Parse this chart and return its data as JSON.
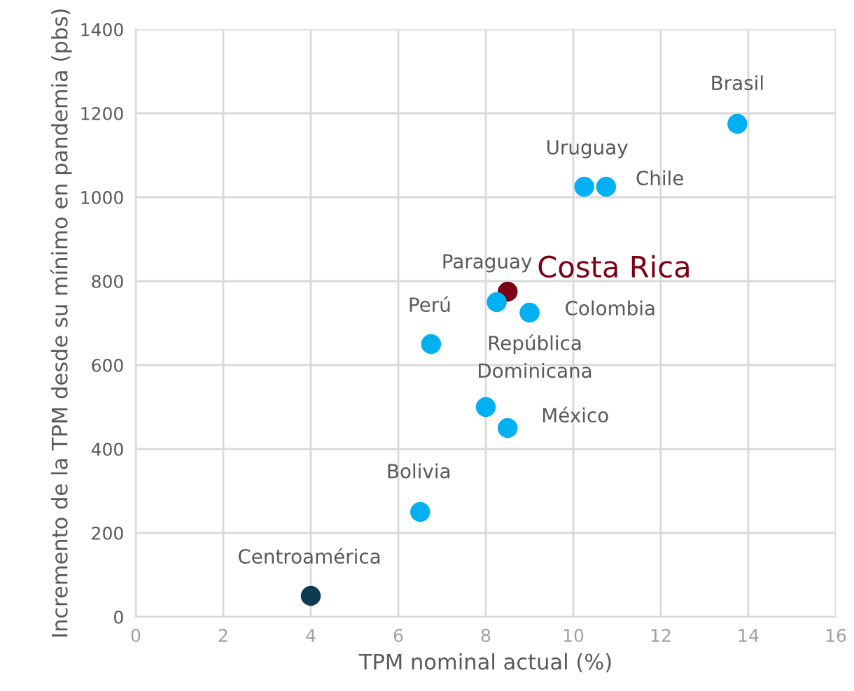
{
  "chart_data": {
    "type": "scatter",
    "xlabel": "TPM nominal actual (%)",
    "ylabel": "Incremento de la TPM desde su mínimo en pandemia (pbs)",
    "x": [
      13.75,
      10.25,
      10.75,
      8.5,
      8.25,
      9,
      6.75,
      8,
      8.5,
      6.5,
      4
    ],
    "values": [
      1175,
      1025,
      1025,
      775,
      750,
      725,
      650,
      500,
      450,
      250,
      50
    ],
    "colors": [
      "#00b0f0",
      "#00b0f0",
      "#00b0f0",
      "#7b0016",
      "#00b0f0",
      "#00b0f0",
      "#00b0f0",
      "#00b0f0",
      "#00b0f0",
      "#00b0f0",
      "#0d3b4f"
    ],
    "annotations": [
      {
        "text": "Brasil",
        "x": 13.75,
        "y": 1175
      },
      {
        "text": "Uruguay",
        "x": 10.25,
        "y": 1025
      },
      {
        "text": "Chile",
        "x": 10.75,
        "y": 1025
      },
      {
        "text": "Costa Rica",
        "x": 8.5,
        "y": 775
      },
      {
        "text": "Paraguay",
        "x": 8.25,
        "y": 750
      },
      {
        "text": "Colombia",
        "x": 9,
        "y": 725
      },
      {
        "text": "Perú",
        "x": 6.75,
        "y": 650
      },
      {
        "text": "República\nDominicana",
        "x": 8,
        "y": 500
      },
      {
        "text": "México",
        "x": 8.5,
        "y": 450
      },
      {
        "text": "Bolivia",
        "x": 6.5,
        "y": 250
      },
      {
        "text": "Centroamérica",
        "x": 4,
        "y": 50
      }
    ],
    "xlim": [
      0,
      16
    ],
    "xticks": [
      0,
      2,
      4,
      6,
      8,
      10,
      12,
      14,
      16
    ],
    "ylim": [
      0,
      1400
    ],
    "yticks": [
      0,
      200,
      400,
      600,
      800,
      1000,
      1200,
      1400
    ],
    "grid": true
  }
}
